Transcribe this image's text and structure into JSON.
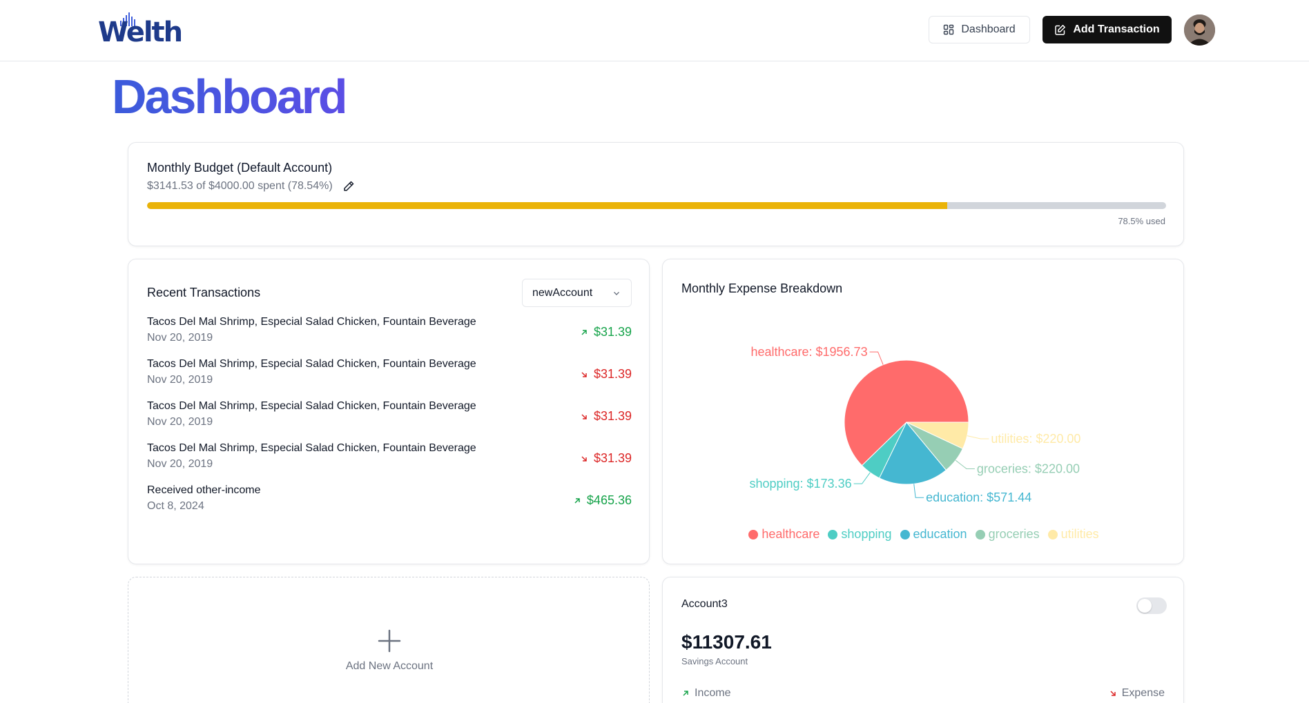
{
  "header": {
    "logo_text": "Welth",
    "dashboard_button": "Dashboard",
    "add_transaction_button": "Add Transaction"
  },
  "page": {
    "title": "Dashboard"
  },
  "budget": {
    "title": "Monthly Budget (Default Account)",
    "summary": "$3141.53 of $4000.00 spent (78.54%)",
    "used_fraction": 0.7854,
    "used_label": "78.5% used",
    "fill_color": "#eab308"
  },
  "transactions": {
    "title": "Recent Transactions",
    "account_select": "newAccount",
    "items": [
      {
        "description": "Tacos Del Mal Shrimp, Especial Salad Chicken, Fountain Beverage",
        "date": "Nov 20, 2019",
        "amount": "$31.39",
        "type": "income"
      },
      {
        "description": "Tacos Del Mal Shrimp, Especial Salad Chicken, Fountain Beverage",
        "date": "Nov 20, 2019",
        "amount": "$31.39",
        "type": "expense"
      },
      {
        "description": "Tacos Del Mal Shrimp, Especial Salad Chicken, Fountain Beverage",
        "date": "Nov 20, 2019",
        "amount": "$31.39",
        "type": "expense"
      },
      {
        "description": "Tacos Del Mal Shrimp, Especial Salad Chicken, Fountain Beverage",
        "date": "Nov 20, 2019",
        "amount": "$31.39",
        "type": "expense"
      },
      {
        "description": "Received other-income",
        "date": "Oct 8, 2024",
        "amount": "$465.36",
        "type": "income"
      }
    ]
  },
  "expense_breakdown": {
    "title": "Monthly Expense Breakdown"
  },
  "chart_data": {
    "type": "pie",
    "title": "Monthly Expense Breakdown",
    "slices": [
      {
        "name": "healthcare",
        "value": 1956.73,
        "label": "healthcare: $1956.73",
        "color": "#ff6b6b"
      },
      {
        "name": "shopping",
        "value": 173.36,
        "label": "shopping: $173.36",
        "color": "#4ecdc4"
      },
      {
        "name": "education",
        "value": 571.44,
        "label": "education: $571.44",
        "color": "#45b7d1"
      },
      {
        "name": "groceries",
        "value": 220.0,
        "label": "groceries: $220.00",
        "color": "#96ceb4"
      },
      {
        "name": "utilities",
        "value": 220.0,
        "label": "utilities: $220.00",
        "color": "#ffeaa7"
      }
    ],
    "legend_position": "bottom"
  },
  "add_account": {
    "label": "Add New Account"
  },
  "account": {
    "name": "Account3",
    "balance": "$11307.61",
    "type": "Savings Account",
    "income_label": "Income",
    "expense_label": "Expense",
    "is_default": false
  },
  "colors": {
    "income": "#16a34a",
    "expense": "#dc2626",
    "title_gradient": "#4f46e5"
  }
}
